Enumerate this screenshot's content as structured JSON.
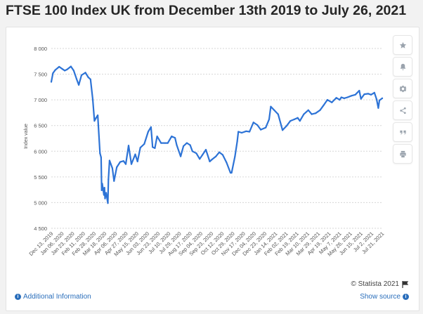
{
  "page": {
    "title": "FTSE 100 Index UK from December 13th 2019 to July 26, 2021",
    "credit": "© Statista 2021",
    "additional_info_label": "Additional Information",
    "show_source_label": "Show source"
  },
  "toolbar": {
    "buttons": [
      "star-icon",
      "bell-icon",
      "gear-icon",
      "share-icon",
      "quote-icon",
      "print-icon"
    ]
  },
  "colors": {
    "line": "#2d73d6",
    "grid": "#d6d6d6",
    "link": "#2a6ebb"
  },
  "chart_data": {
    "type": "line",
    "title": "",
    "xlabel": "",
    "ylabel": "Index value",
    "ylim": [
      4500,
      8000
    ],
    "yticks": [
      4500,
      5000,
      5500,
      6000,
      6500,
      7000,
      7500,
      8000
    ],
    "ytick_labels": [
      "4 500",
      "5 000",
      "5 500",
      "6 000",
      "6 500",
      "7 000",
      "7 500",
      "8 000"
    ],
    "xlim": [
      "2019-12-13",
      "2021-07-26"
    ],
    "xtick_labels": [
      "Dec 13, 2019",
      "Jan 06, 2020",
      "Jan 23, 2020",
      "Feb 11, 2020",
      "Feb 28, 2020",
      "Mar 18, 2020",
      "Apr 06, 2020",
      "Apr 27, 2020",
      "May 15, 2020",
      "Jun 03, 2020",
      "Jun 23, 2020",
      "Jul 10, 2020",
      "Jul 29, 2020",
      "Aug 17, 2020",
      "Sep 04, 2020",
      "Sep 23, 2020",
      "Oct 12, 2020",
      "Oct 29, 2020",
      "Nov 17, 2020",
      "Dec 04, 2020",
      "Dec 23, 2020",
      "Jan 14, 2021",
      "Feb 02, 2021",
      "Feb 19, 2021",
      "Mar 10, 2021",
      "Mar 29, 2021",
      "Apr 19, 2021",
      "May 7, 2021",
      "May 26, 2021",
      "Jun 15, 2021",
      "Jul 2, 2021",
      "Jul 21, 2021"
    ],
    "grid": true,
    "series": [
      {
        "points": [
          [
            "2019-12-13",
            7350
          ],
          [
            "2019-12-16",
            7520
          ],
          [
            "2019-12-20",
            7580
          ],
          [
            "2019-12-27",
            7645
          ],
          [
            "2020-01-02",
            7600
          ],
          [
            "2020-01-06",
            7570
          ],
          [
            "2020-01-10",
            7590
          ],
          [
            "2020-01-17",
            7650
          ],
          [
            "2020-01-22",
            7570
          ],
          [
            "2020-01-27",
            7410
          ],
          [
            "2020-01-31",
            7290
          ],
          [
            "2020-02-05",
            7480
          ],
          [
            "2020-02-12",
            7530
          ],
          [
            "2020-02-17",
            7440
          ],
          [
            "2020-02-21",
            7400
          ],
          [
            "2020-02-25",
            7010
          ],
          [
            "2020-02-28",
            6590
          ],
          [
            "2020-03-02",
            6650
          ],
          [
            "2020-03-05",
            6700
          ],
          [
            "2020-03-09",
            5960
          ],
          [
            "2020-03-11",
            5880
          ],
          [
            "2020-03-12",
            5240
          ],
          [
            "2020-03-13",
            5370
          ],
          [
            "2020-03-16",
            5150
          ],
          [
            "2020-03-17",
            5290
          ],
          [
            "2020-03-18",
            5080
          ],
          [
            "2020-03-19",
            5150
          ],
          [
            "2020-03-20",
            5190
          ],
          [
            "2020-03-23",
            4990
          ],
          [
            "2020-03-24",
            5450
          ],
          [
            "2020-03-26",
            5820
          ],
          [
            "2020-03-31",
            5670
          ],
          [
            "2020-04-03",
            5420
          ],
          [
            "2020-04-08",
            5690
          ],
          [
            "2020-04-14",
            5790
          ],
          [
            "2020-04-20",
            5810
          ],
          [
            "2020-04-24",
            5750
          ],
          [
            "2020-04-29",
            6110
          ],
          [
            "2020-05-04",
            5750
          ],
          [
            "2020-05-11",
            5940
          ],
          [
            "2020-05-15",
            5800
          ],
          [
            "2020-05-20",
            6070
          ],
          [
            "2020-05-27",
            6140
          ],
          [
            "2020-06-03",
            6380
          ],
          [
            "2020-06-08",
            6470
          ],
          [
            "2020-06-11",
            6080
          ],
          [
            "2020-06-15",
            6060
          ],
          [
            "2020-06-19",
            6290
          ],
          [
            "2020-06-26",
            6160
          ],
          [
            "2020-07-03",
            6160
          ],
          [
            "2020-07-08",
            6160
          ],
          [
            "2020-07-15",
            6290
          ],
          [
            "2020-07-21",
            6260
          ],
          [
            "2020-07-24",
            6120
          ],
          [
            "2020-07-31",
            5900
          ],
          [
            "2020-08-05",
            6100
          ],
          [
            "2020-08-11",
            6160
          ],
          [
            "2020-08-17",
            6120
          ],
          [
            "2020-08-21",
            6000
          ],
          [
            "2020-08-28",
            5960
          ],
          [
            "2020-09-03",
            5850
          ],
          [
            "2020-09-08",
            5930
          ],
          [
            "2020-09-14",
            6030
          ],
          [
            "2020-09-21",
            5800
          ],
          [
            "2020-09-25",
            5840
          ],
          [
            "2020-10-02",
            5900
          ],
          [
            "2020-10-08",
            5980
          ],
          [
            "2020-10-14",
            5930
          ],
          [
            "2020-10-21",
            5780
          ],
          [
            "2020-10-28",
            5580
          ],
          [
            "2020-10-30",
            5580
          ],
          [
            "2020-11-05",
            5900
          ],
          [
            "2020-11-09",
            6190
          ],
          [
            "2020-11-11",
            6380
          ],
          [
            "2020-11-17",
            6360
          ],
          [
            "2020-11-25",
            6390
          ],
          [
            "2020-12-01",
            6380
          ],
          [
            "2020-12-08",
            6560
          ],
          [
            "2020-12-15",
            6510
          ],
          [
            "2020-12-21",
            6420
          ],
          [
            "2020-12-30",
            6460
          ],
          [
            "2021-01-05",
            6620
          ],
          [
            "2021-01-08",
            6870
          ],
          [
            "2021-01-14",
            6800
          ],
          [
            "2021-01-21",
            6720
          ],
          [
            "2021-01-29",
            6410
          ],
          [
            "2021-02-05",
            6490
          ],
          [
            "2021-02-12",
            6590
          ],
          [
            "2021-02-19",
            6620
          ],
          [
            "2021-02-25",
            6650
          ],
          [
            "2021-03-01",
            6590
          ],
          [
            "2021-03-08",
            6720
          ],
          [
            "2021-03-16",
            6800
          ],
          [
            "2021-03-22",
            6720
          ],
          [
            "2021-03-29",
            6740
          ],
          [
            "2021-04-06",
            6800
          ],
          [
            "2021-04-12",
            6890
          ],
          [
            "2021-04-19",
            7000
          ],
          [
            "2021-04-27",
            6950
          ],
          [
            "2021-05-05",
            7040
          ],
          [
            "2021-05-11",
            7000
          ],
          [
            "2021-05-14",
            7050
          ],
          [
            "2021-05-19",
            7030
          ],
          [
            "2021-05-25",
            7050
          ],
          [
            "2021-06-01",
            7080
          ],
          [
            "2021-06-08",
            7100
          ],
          [
            "2021-06-15",
            7180
          ],
          [
            "2021-06-18",
            7020
          ],
          [
            "2021-06-24",
            7110
          ],
          [
            "2021-07-01",
            7120
          ],
          [
            "2021-07-06",
            7100
          ],
          [
            "2021-07-12",
            7140
          ],
          [
            "2021-07-16",
            7010
          ],
          [
            "2021-07-19",
            6840
          ],
          [
            "2021-07-21",
            6990
          ],
          [
            "2021-07-26",
            7030
          ]
        ]
      }
    ]
  }
}
